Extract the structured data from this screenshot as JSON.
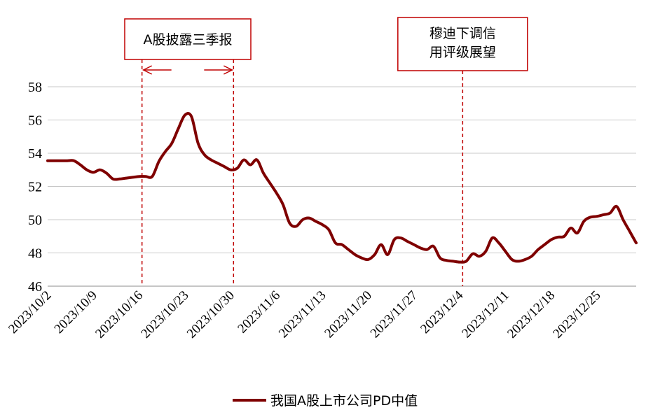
{
  "chart_data": {
    "type": "line",
    "ylim": [
      46,
      58
    ],
    "yticks": [
      46,
      48,
      50,
      52,
      54,
      56,
      58
    ],
    "x_tick_labels": [
      "2023/10/2",
      "2023/10/9",
      "2023/10/16",
      "2023/10/23",
      "2023/10/30",
      "2023/11/6",
      "2023/11/13",
      "2023/11/20",
      "2023/11/27",
      "2023/12/4",
      "2023/12/11",
      "2023/12/18",
      "2023/12/25"
    ],
    "grid": "horizontal",
    "legend_position": "bottom",
    "line_color": "#7f0000",
    "annotation_color": "#c00000",
    "series": [
      {
        "name": "我国A股上市公司PD中值",
        "points": [
          [
            "2023-10-02",
            53.55
          ],
          [
            "2023-10-03",
            53.55
          ],
          [
            "2023-10-04",
            53.55
          ],
          [
            "2023-10-05",
            53.55
          ],
          [
            "2023-10-06",
            53.55
          ],
          [
            "2023-10-07",
            53.3
          ],
          [
            "2023-10-08",
            53.0
          ],
          [
            "2023-10-09",
            52.85
          ],
          [
            "2023-10-10",
            53.0
          ],
          [
            "2023-10-11",
            52.8
          ],
          [
            "2023-10-12",
            52.45
          ],
          [
            "2023-10-13",
            52.45
          ],
          [
            "2023-10-14",
            52.5
          ],
          [
            "2023-10-15",
            52.55
          ],
          [
            "2023-10-16",
            52.6
          ],
          [
            "2023-10-17",
            52.6
          ],
          [
            "2023-10-18",
            52.6
          ],
          [
            "2023-10-19",
            53.5
          ],
          [
            "2023-10-20",
            54.1
          ],
          [
            "2023-10-21",
            54.6
          ],
          [
            "2023-10-22",
            55.5
          ],
          [
            "2023-10-23",
            56.3
          ],
          [
            "2023-10-24",
            56.2
          ],
          [
            "2023-10-25",
            54.6
          ],
          [
            "2023-10-26",
            53.9
          ],
          [
            "2023-10-27",
            53.6
          ],
          [
            "2023-10-28",
            53.4
          ],
          [
            "2023-10-29",
            53.2
          ],
          [
            "2023-10-30",
            53.0
          ],
          [
            "2023-10-31",
            53.1
          ],
          [
            "2023-11-01",
            53.6
          ],
          [
            "2023-11-02",
            53.3
          ],
          [
            "2023-11-03",
            53.6
          ],
          [
            "2023-11-04",
            52.8
          ],
          [
            "2023-11-05",
            52.2
          ],
          [
            "2023-11-06",
            51.6
          ],
          [
            "2023-11-07",
            50.9
          ],
          [
            "2023-11-08",
            49.8
          ],
          [
            "2023-11-09",
            49.6
          ],
          [
            "2023-11-10",
            50.0
          ],
          [
            "2023-11-11",
            50.1
          ],
          [
            "2023-11-12",
            49.9
          ],
          [
            "2023-11-13",
            49.7
          ],
          [
            "2023-11-14",
            49.4
          ],
          [
            "2023-11-15",
            48.6
          ],
          [
            "2023-11-16",
            48.5
          ],
          [
            "2023-11-17",
            48.2
          ],
          [
            "2023-11-18",
            47.9
          ],
          [
            "2023-11-19",
            47.7
          ],
          [
            "2023-11-20",
            47.6
          ],
          [
            "2023-11-21",
            47.9
          ],
          [
            "2023-11-22",
            48.5
          ],
          [
            "2023-11-23",
            47.9
          ],
          [
            "2023-11-24",
            48.8
          ],
          [
            "2023-11-25",
            48.9
          ],
          [
            "2023-11-26",
            48.7
          ],
          [
            "2023-11-27",
            48.5
          ],
          [
            "2023-11-28",
            48.3
          ],
          [
            "2023-11-29",
            48.2
          ],
          [
            "2023-11-30",
            48.4
          ],
          [
            "2023-12-01",
            47.7
          ],
          [
            "2023-12-02",
            47.55
          ],
          [
            "2023-12-03",
            47.5
          ],
          [
            "2023-12-04",
            47.45
          ],
          [
            "2023-12-05",
            47.5
          ],
          [
            "2023-12-06",
            47.95
          ],
          [
            "2023-12-07",
            47.8
          ],
          [
            "2023-12-08",
            48.1
          ],
          [
            "2023-12-09",
            48.9
          ],
          [
            "2023-12-10",
            48.6
          ],
          [
            "2023-12-11",
            48.1
          ],
          [
            "2023-12-12",
            47.6
          ],
          [
            "2023-12-13",
            47.5
          ],
          [
            "2023-12-14",
            47.6
          ],
          [
            "2023-12-15",
            47.8
          ],
          [
            "2023-12-16",
            48.2
          ],
          [
            "2023-12-17",
            48.5
          ],
          [
            "2023-12-18",
            48.8
          ],
          [
            "2023-12-19",
            48.95
          ],
          [
            "2023-12-20",
            49.0
          ],
          [
            "2023-12-21",
            49.5
          ],
          [
            "2023-12-22",
            49.2
          ],
          [
            "2023-12-23",
            49.9
          ],
          [
            "2023-12-24",
            50.15
          ],
          [
            "2023-12-25",
            50.2
          ],
          [
            "2023-12-26",
            50.3
          ],
          [
            "2023-12-27",
            50.4
          ],
          [
            "2023-12-28",
            50.8
          ],
          [
            "2023-12-29",
            50.0
          ],
          [
            "2023-12-30",
            49.3
          ],
          [
            "2023-12-31",
            48.6
          ]
        ]
      }
    ],
    "annotations": [
      {
        "text": "A股披露三季报",
        "kind": "range",
        "start": "2023-10-16",
        "end": "2023-10-30"
      },
      {
        "text": "穆迪下调信用评级展望",
        "lines": [
          "穆迪下调信",
          "用评级展望"
        ],
        "kind": "line",
        "at": "2023-12-05"
      }
    ]
  }
}
